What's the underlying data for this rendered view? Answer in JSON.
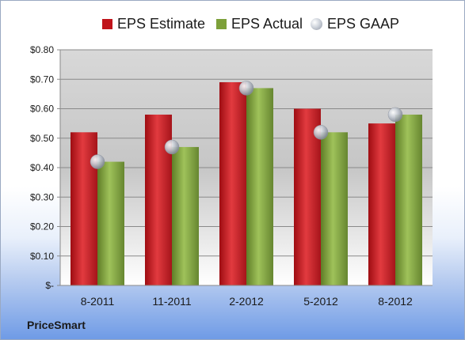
{
  "chart_data": {
    "type": "bar",
    "categories": [
      "8-2011",
      "11-2011",
      "2-2012",
      "5-2012",
      "8-2012"
    ],
    "series": [
      {
        "name": "EPS Estimate",
        "values": [
          0.52,
          0.58,
          0.69,
          0.6,
          0.55
        ],
        "color": "#c0141b"
      },
      {
        "name": "EPS Actual",
        "values": [
          0.42,
          0.47,
          0.67,
          0.52,
          0.58
        ],
        "color": "#7da03a"
      },
      {
        "name": "EPS GAAP",
        "values": [
          0.42,
          0.47,
          0.67,
          0.52,
          0.58
        ],
        "color": "#b8bec8",
        "marker": "sphere"
      }
    ],
    "y_ticks": [
      "$-",
      "$0.10",
      "$0.20",
      "$0.30",
      "$0.40",
      "$0.50",
      "$0.60",
      "$0.70",
      "$0.80"
    ],
    "ylim": [
      0,
      0.8
    ],
    "grid": true,
    "legend_position": "top",
    "title": "",
    "xlabel": "",
    "ylabel": ""
  },
  "footer": {
    "company": "PriceSmart"
  }
}
